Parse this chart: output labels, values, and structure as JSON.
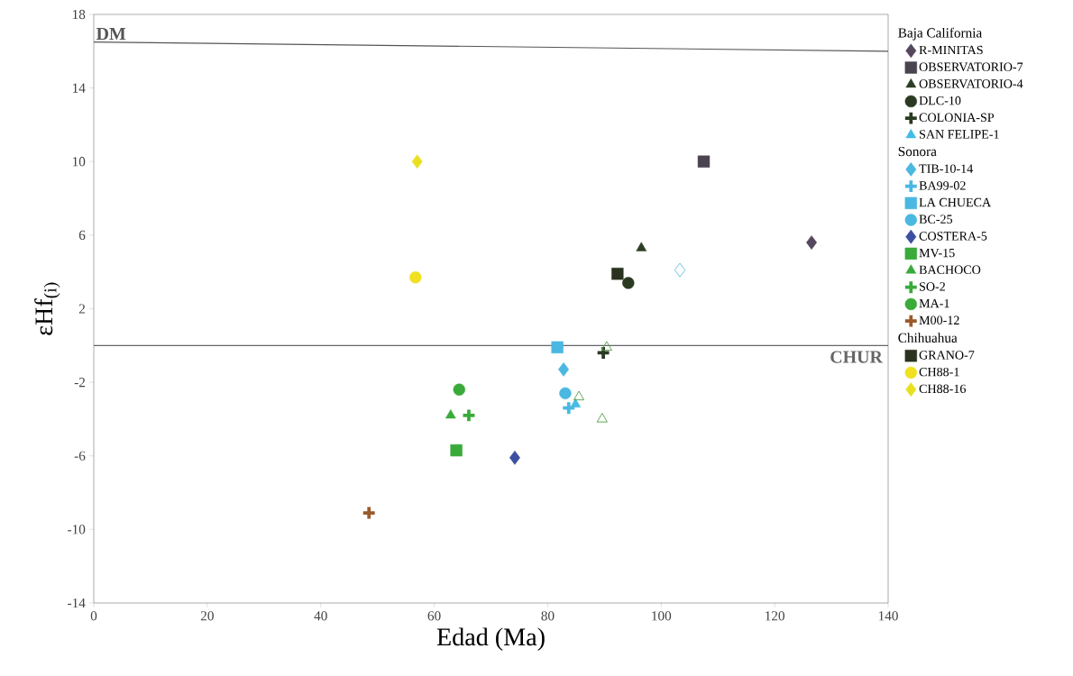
{
  "chart_data": {
    "type": "scatter",
    "xlabel": "Edad (Ma)",
    "ylabel": "εHf$_{(i)}$",
    "xlim": [
      0,
      140
    ],
    "ylim": [
      -14,
      18
    ],
    "xticks": [
      0,
      20,
      40,
      60,
      80,
      100,
      120,
      140
    ],
    "yticks": [
      -14,
      -10,
      -6,
      -2,
      2,
      6,
      10,
      14,
      18
    ],
    "grid": false,
    "legend": "right",
    "annotations": [
      "Baja California",
      "Sonora",
      "Chihuahua"
    ],
    "ref_lines": [
      {
        "axis": "y",
        "value": 0,
        "label": "CHUR",
        "color": "#666666"
      }
    ],
    "series": [
      {
        "name": "R-MINITAS",
        "color": "#54475e",
        "marker": "diamond",
        "x": [
          126.5
        ],
        "values": [
          5.6
        ]
      },
      {
        "name": "OBSERVATORIO-7",
        "color": "#4b4350",
        "marker": "square",
        "x": [
          107.5
        ],
        "values": [
          10
        ]
      },
      {
        "name": "OBSERVATORIO-4",
        "color": "#2c3e25",
        "marker": "triangle",
        "x": [
          96.5
        ],
        "values": [
          5.3
        ]
      },
      {
        "name": "DLC-10",
        "color": "#2a3a22",
        "marker": "circle",
        "x": [
          94.2
        ],
        "values": [
          3.4
        ]
      },
      {
        "name": "COLONIA-SP",
        "color": "#2a3a22",
        "marker": "cross",
        "x": [
          89.8
        ],
        "values": [
          -0.4
        ]
      },
      {
        "name": "SAN FELIPE-1",
        "color": "#44bde6",
        "marker": "triangle",
        "x": [
          84.9
        ],
        "values": [
          -3.2
        ]
      },
      {
        "name": "TIB-10-14",
        "color": "#4ab8e0",
        "marker": "diamond",
        "x": [
          82.8
        ],
        "values": [
          -1.3
        ]
      },
      {
        "name": "BA99-02",
        "color": "#4ab8e0",
        "marker": "cross",
        "x": [
          83.7
        ],
        "values": [
          -3.4
        ]
      },
      {
        "name": "LA CHUECA",
        "color": "#4ab8e0",
        "marker": "square",
        "x": [
          81.7
        ],
        "values": [
          -0.1
        ]
      },
      {
        "name": "BC-25",
        "color": "#4ab8e0",
        "marker": "circle",
        "x": [
          83.1
        ],
        "values": [
          -2.6
        ]
      },
      {
        "name": "COSTERA-5",
        "color": "#3d4fa0",
        "marker": "diamond",
        "x": [
          74.2
        ],
        "values": [
          -6.1
        ]
      },
      {
        "name": "MV-15",
        "color": "#3aaa3a",
        "marker": "square",
        "x": [
          63.9
        ],
        "values": [
          -5.7
        ]
      },
      {
        "name": "BACHOCO",
        "color": "#3aaa3a",
        "marker": "triangle",
        "x": [
          62.9
        ],
        "values": [
          -3.8
        ]
      },
      {
        "name": "SO-2",
        "color": "#3aaa3a",
        "marker": "cross",
        "x": [
          66.1
        ],
        "values": [
          -3.8
        ]
      },
      {
        "name": "MA-1",
        "color": "#3aaa3a",
        "marker": "circle",
        "x": [
          64.4
        ],
        "values": [
          -2.4
        ]
      },
      {
        "name": "M00-12",
        "color": "#9a5a2a",
        "marker": "cross",
        "x": [
          48.5
        ],
        "values": [
          -9.1
        ]
      },
      {
        "name": "GRANO-7",
        "color": "#2a3320",
        "marker": "square",
        "x": [
          92.3
        ],
        "values": [
          3.9
        ]
      },
      {
        "name": "CH88-1",
        "color": "#f0e020",
        "marker": "circle",
        "x": [
          56.7
        ],
        "values": [
          3.7
        ]
      },
      {
        "name": "CH88-16",
        "color": "#e8e020",
        "marker": "diamond",
        "x": [
          57.0
        ],
        "values": [
          10.0
        ]
      },
      {
        "color": "#5aa050",
        "marker": "triangle",
        "x": [
          90.4,
          85.5,
          89.6
        ],
        "values": [
          -0.1,
          -2.8,
          -4.0
        ]
      },
      {
        "color": "#66c0e0",
        "marker": "diamond",
        "x": [
          103.3
        ],
        "values": [
          4.1
        ]
      },
      {
        "name": "DM",
        "type": "line",
        "color": "#555555",
        "marker": "none",
        "x": [
          0,
          140
        ],
        "values": [
          16.5,
          16
        ]
      }
    ]
  }
}
